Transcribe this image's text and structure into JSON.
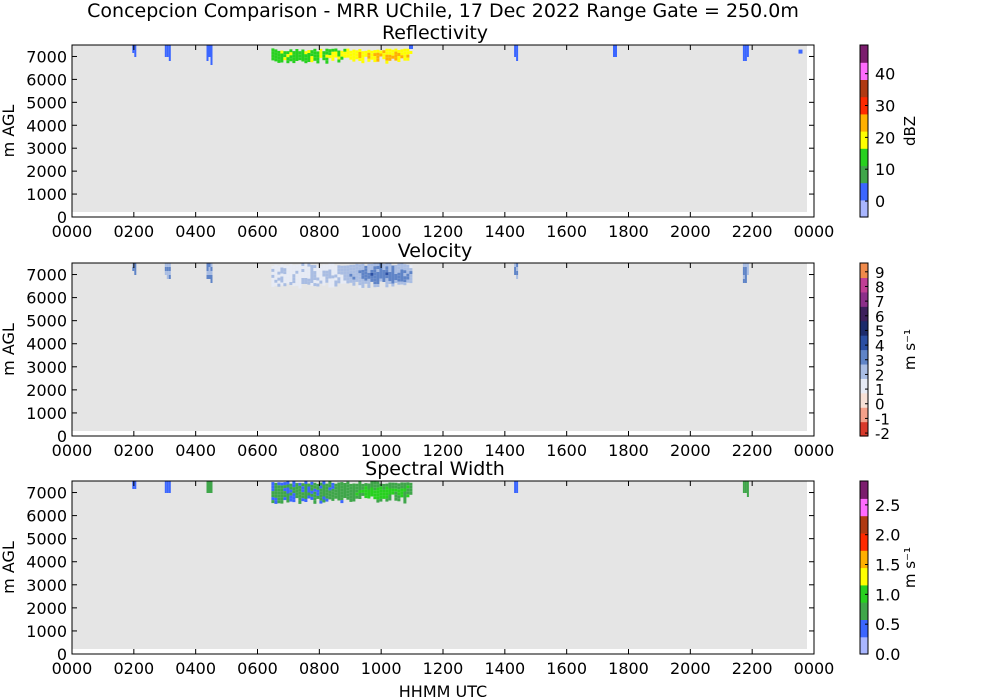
{
  "figure": {
    "title": "Concepcion Comparison - MRR UChile, 17 Dec 2022 Range Gate = 250.0m",
    "xlabel": "HHMM UTC"
  },
  "chart_data": [
    {
      "type": "heatmap",
      "title": "Reflectivity",
      "ylabel": "m AGL",
      "xlabel": "",
      "x_ticks": [
        "0000",
        "0200",
        "0400",
        "0600",
        "0800",
        "1000",
        "1200",
        "1400",
        "1600",
        "1800",
        "2000",
        "2200",
        "0000"
      ],
      "x_tick_hours": [
        0,
        2,
        4,
        6,
        8,
        10,
        12,
        14,
        16,
        18,
        20,
        22,
        24
      ],
      "y_ticks": [
        0,
        1000,
        2000,
        3000,
        4000,
        5000,
        6000,
        7000
      ],
      "xlim_hours": [
        0,
        24
      ],
      "ylim": [
        0,
        7500
      ],
      "colorbar": {
        "label": "dBZ",
        "range": [
          -5,
          49
        ],
        "ticks": [
          "0",
          "10",
          "20",
          "30",
          "40"
        ],
        "tick_values": [
          0,
          10,
          20,
          30,
          40
        ],
        "colors": [
          "#a9b6ff",
          "#3b66ff",
          "#3fa64a",
          "#27d11f",
          "#ffff00",
          "#ffb000",
          "#ff2a00",
          "#b03a12",
          "#ff6bff",
          "#7b1d6e"
        ]
      },
      "background_color": "#e5e5e5",
      "echoes": [
        {
          "start_hour": 6.45,
          "end_hour": 11.0,
          "bottom_m": 6750,
          "top_m": 7350,
          "peak_dbz": 25,
          "mean_dbz": 15
        },
        {
          "start_hour": 1.95,
          "end_hour": 2.05,
          "bottom_m": 7050,
          "top_m": 7500,
          "peak_dbz": 3,
          "mean_dbz": 0
        },
        {
          "start_hour": 3.0,
          "end_hour": 3.15,
          "bottom_m": 6800,
          "top_m": 7500,
          "peak_dbz": 3,
          "mean_dbz": 0
        },
        {
          "start_hour": 4.35,
          "end_hour": 4.5,
          "bottom_m": 6700,
          "top_m": 7500,
          "peak_dbz": 3,
          "mean_dbz": 0
        },
        {
          "start_hour": 10.9,
          "end_hour": 11.0,
          "bottom_m": 7300,
          "top_m": 7500,
          "peak_dbz": 3,
          "mean_dbz": 0
        },
        {
          "start_hour": 14.3,
          "end_hour": 14.4,
          "bottom_m": 6900,
          "top_m": 7500,
          "peak_dbz": 3,
          "mean_dbz": 0
        },
        {
          "start_hour": 17.5,
          "end_hour": 17.6,
          "bottom_m": 7000,
          "top_m": 7500,
          "peak_dbz": 3,
          "mean_dbz": 0
        },
        {
          "start_hour": 21.7,
          "end_hour": 21.85,
          "bottom_m": 6800,
          "top_m": 7500,
          "peak_dbz": 3,
          "mean_dbz": 0
        },
        {
          "start_hour": 23.5,
          "end_hour": 23.6,
          "bottom_m": 7100,
          "top_m": 7300,
          "peak_dbz": 3,
          "mean_dbz": 0
        }
      ]
    },
    {
      "type": "heatmap",
      "title": "Velocity",
      "ylabel": "m AGL",
      "xlabel": "",
      "x_ticks": [
        "0000",
        "0200",
        "0400",
        "0600",
        "0800",
        "1000",
        "1200",
        "1400",
        "1600",
        "1800",
        "2000",
        "2200",
        "0000"
      ],
      "x_tick_hours": [
        0,
        2,
        4,
        6,
        8,
        10,
        12,
        14,
        16,
        18,
        20,
        22,
        24
      ],
      "y_ticks": [
        0,
        1000,
        2000,
        3000,
        4000,
        5000,
        6000,
        7000
      ],
      "xlim_hours": [
        0,
        24
      ],
      "ylim": [
        0,
        7500
      ],
      "colorbar": {
        "label": "m s⁻¹",
        "range": [
          -2.2,
          9.6
        ],
        "ticks": [
          "-2",
          "-1",
          "0",
          "1",
          "2",
          "3",
          "4",
          "5",
          "6",
          "7",
          "8",
          "9"
        ],
        "tick_values": [
          -2,
          -1,
          0,
          1,
          2,
          3,
          4,
          5,
          6,
          7,
          8,
          9
        ],
        "colors": [
          "#d93a2b",
          "#f5a18a",
          "#f6e0d6",
          "#e7ebf5",
          "#a9bde3",
          "#5f84c7",
          "#2b4fa3",
          "#1c2b6b",
          "#3d1f5c",
          "#8c2f8a",
          "#c13f95",
          "#f08a4b"
        ]
      },
      "background_color": "#e5e5e5",
      "echoes": [
        {
          "start_hour": 6.45,
          "end_hour": 11.0,
          "bottom_m": 6500,
          "top_m": 7500,
          "mean_ms": 1.5,
          "peak_ms": 3.5
        },
        {
          "start_hour": 1.95,
          "end_hour": 2.05,
          "bottom_m": 6900,
          "top_m": 7500,
          "mean_ms": 2.5,
          "peak_ms": 3.0
        },
        {
          "start_hour": 3.0,
          "end_hour": 3.15,
          "bottom_m": 6700,
          "top_m": 7500,
          "mean_ms": 2.5,
          "peak_ms": 3.0
        },
        {
          "start_hour": 4.35,
          "end_hour": 4.5,
          "bottom_m": 6700,
          "top_m": 7500,
          "mean_ms": 2.5,
          "peak_ms": 3.0
        },
        {
          "start_hour": 14.3,
          "end_hour": 14.4,
          "bottom_m": 6800,
          "top_m": 7500,
          "mean_ms": 2.5,
          "peak_ms": 3.0
        },
        {
          "start_hour": 21.7,
          "end_hour": 21.85,
          "bottom_m": 6700,
          "top_m": 7500,
          "mean_ms": 2.5,
          "peak_ms": 3.0
        }
      ]
    },
    {
      "type": "heatmap",
      "title": "Spectral Width",
      "ylabel": "m AGL",
      "xlabel": "HHMM UTC",
      "x_ticks": [
        "0000",
        "0200",
        "0400",
        "0600",
        "0800",
        "1000",
        "1200",
        "1400",
        "1600",
        "1800",
        "2000",
        "2200",
        "0000"
      ],
      "x_tick_hours": [
        0,
        2,
        4,
        6,
        8,
        10,
        12,
        14,
        16,
        18,
        20,
        22,
        24
      ],
      "y_ticks": [
        0,
        1000,
        2000,
        3000,
        4000,
        5000,
        6000,
        7000
      ],
      "xlim_hours": [
        0,
        24
      ],
      "ylim": [
        0,
        7500
      ],
      "colorbar": {
        "label": "m s⁻¹",
        "range": [
          0.0,
          2.9
        ],
        "ticks": [
          "0.0",
          "0.5",
          "1.0",
          "1.5",
          "2.0",
          "2.5"
        ],
        "tick_values": [
          0.0,
          0.5,
          1.0,
          1.5,
          2.0,
          2.5
        ],
        "colors": [
          "#a9b6ff",
          "#3b66ff",
          "#3fa64a",
          "#27d11f",
          "#ffff00",
          "#ffb000",
          "#ff2a00",
          "#b03a12",
          "#ff6bff",
          "#7b1d6e"
        ]
      },
      "background_color": "#e5e5e5",
      "echoes": [
        {
          "start_hour": 6.45,
          "end_hour": 11.0,
          "bottom_m": 6600,
          "top_m": 7500,
          "mean_ms": 0.6,
          "peak_ms": 1.0
        },
        {
          "start_hour": 1.95,
          "end_hour": 2.05,
          "bottom_m": 7100,
          "top_m": 7500,
          "mean_ms": 0.4,
          "peak_ms": 0.5
        },
        {
          "start_hour": 3.0,
          "end_hour": 3.15,
          "bottom_m": 6800,
          "top_m": 7500,
          "mean_ms": 0.4,
          "peak_ms": 0.5
        },
        {
          "start_hour": 4.35,
          "end_hour": 4.5,
          "bottom_m": 6700,
          "top_m": 7500,
          "mean_ms": 0.6,
          "peak_ms": 0.8
        },
        {
          "start_hour": 14.3,
          "end_hour": 14.4,
          "bottom_m": 6800,
          "top_m": 7500,
          "mean_ms": 0.4,
          "peak_ms": 0.5
        },
        {
          "start_hour": 21.7,
          "end_hour": 21.85,
          "bottom_m": 6800,
          "top_m": 7500,
          "mean_ms": 0.7,
          "peak_ms": 0.9
        }
      ]
    }
  ]
}
